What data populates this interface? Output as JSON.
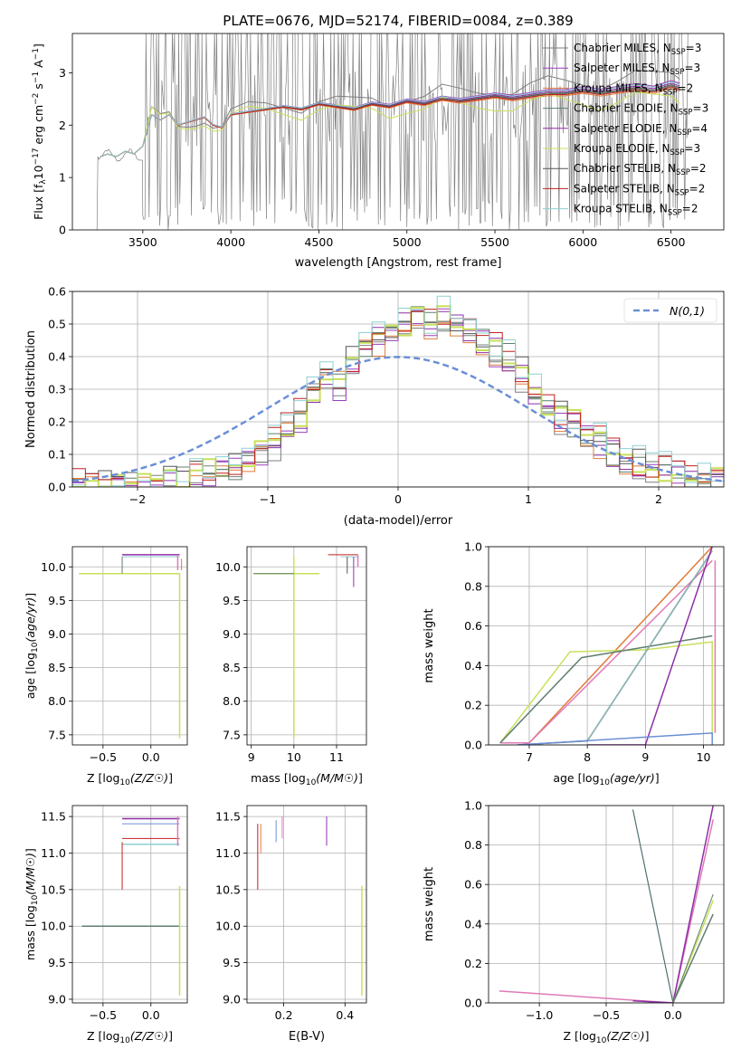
{
  "title": "PLATE=0676, MJD=52174, FIBERID=0084, z=0.389",
  "colors": {
    "Chabrier MILES": "#7f7f7f",
    "Salpeter MILES": "#9b3fbf",
    "Kroupa MILES": "#e07b39",
    "Chabrier ELODIE": "#5f7f6f",
    "Salpeter ELODIE": "#8e2fa8",
    "Kroupa ELODIE": "#c8e05a",
    "Chabrier STELIB": "#555555",
    "Salpeter STELIB": "#c0201f",
    "Kroupa STELIB": "#8fcfd0",
    "normal": "#6b8fd6",
    "pink": "#e07ab8",
    "blue": "#6b8fd6"
  },
  "chart_data": [
    {
      "id": "spectrum",
      "type": "line",
      "xlabel": "wavelength [Angstrom, rest frame]",
      "ylabel": "Flux [f_λ 10^-17 erg cm^-2 s^-1 A^-1]",
      "ylabel_parts": {
        "main": "Flux [f",
        "sub1": "λ",
        "mid": "10",
        "sup1": "−17",
        "rest": " erg cm",
        "sup2": "−2",
        "s": " s",
        "sup3": "−1",
        "a": " A",
        "sup4": "−1",
        "end": "]"
      },
      "xlim": [
        3100,
        6800
      ],
      "ylim": [
        0,
        3.75
      ],
      "xticks": [
        3500,
        4000,
        4500,
        5000,
        5500,
        6000,
        6500
      ],
      "yticks": [
        0,
        1,
        2,
        3
      ],
      "legend": [
        {
          "name": "Chabrier MILES",
          "nssp": "3"
        },
        {
          "name": "Salpeter MILES",
          "nssp": "3"
        },
        {
          "name": "Kroupa MILES",
          "nssp": "2"
        },
        {
          "name": "Chabrier ELODIE",
          "nssp": "3"
        },
        {
          "name": "Salpeter ELODIE",
          "nssp": "4"
        },
        {
          "name": "Kroupa ELODIE",
          "nssp": "3"
        },
        {
          "name": "Chabrier STELIB",
          "nssp": "2"
        },
        {
          "name": "Salpeter STELIB",
          "nssp": "2"
        },
        {
          "name": "Kroupa STELIB",
          "nssp": "2"
        }
      ],
      "nssp_prefix": "N",
      "nssp_sub": "SSP",
      "model_curve_x": [
        3260,
        3300,
        3350,
        3400,
        3450,
        3500,
        3550,
        3600,
        3650,
        3700,
        3750,
        3800,
        3850,
        3900,
        3950,
        4000,
        4100,
        4200,
        4300,
        4400,
        4500,
        4600,
        4700,
        4800,
        4900,
        5000,
        5100,
        5200,
        5300,
        5400,
        5500,
        5600,
        5700,
        5800,
        5900,
        6000,
        6100,
        6200,
        6300,
        6400,
        6500,
        6550
      ],
      "model_curve_y": [
        1.4,
        1.45,
        1.4,
        1.5,
        1.45,
        1.6,
        2.2,
        2.1,
        2.2,
        2.0,
        2.05,
        2.1,
        2.15,
        2.0,
        1.95,
        2.2,
        2.25,
        2.3,
        2.35,
        2.3,
        2.4,
        2.35,
        2.3,
        2.4,
        2.35,
        2.45,
        2.4,
        2.5,
        2.45,
        2.5,
        2.55,
        2.5,
        2.55,
        2.6,
        2.6,
        2.65,
        2.6,
        2.65,
        2.7,
        2.65,
        2.75,
        2.7
      ]
    },
    {
      "id": "residuals",
      "type": "line",
      "xlabel": "(data-model)/error",
      "ylabel": "Normed distribution",
      "xlim": [
        -2.5,
        2.5
      ],
      "ylim": [
        0,
        0.6
      ],
      "xticks": [
        -2,
        -1,
        0,
        1,
        2
      ],
      "yticks": [
        0.0,
        0.1,
        0.2,
        0.3,
        0.4,
        0.5,
        0.6
      ],
      "legend_label": "N(0,1)",
      "bin_edges_start": -2.5,
      "bin_width": 0.1,
      "hist_values": [
        0.0,
        0.0,
        0.0,
        0.0,
        0.0,
        0.0,
        0.01,
        0.015,
        0.02,
        0.03,
        0.04,
        0.05,
        0.06,
        0.08,
        0.11,
        0.14,
        0.18,
        0.22,
        0.3,
        0.35,
        0.32,
        0.38,
        0.42,
        0.45,
        0.48,
        0.5,
        0.52,
        0.5,
        0.53,
        0.5,
        0.48,
        0.45,
        0.42,
        0.4,
        0.35,
        0.3,
        0.26,
        0.22,
        0.2,
        0.17,
        0.14,
        0.11,
        0.09,
        0.07,
        0.06,
        0.05,
        0.04,
        0.03,
        0.02,
        0.02
      ]
    },
    {
      "id": "age-vs-z",
      "type": "line",
      "xlabel": "Z [log10(Z/Z☉)]",
      "ylabel": "age [log10(age/yr)]",
      "xlim": [
        -0.82,
        0.38
      ],
      "ylim": [
        7.35,
        10.3
      ],
      "xticks": [
        -0.5,
        0.0
      ],
      "yticks": [
        7.5,
        8.0,
        8.5,
        9.0,
        9.5,
        10.0
      ]
    },
    {
      "id": "age-vs-mass",
      "type": "line",
      "xlabel": "mass [log10(M/M☉)]",
      "xlim": [
        8.9,
        11.7
      ],
      "ylim": [
        7.35,
        10.3
      ],
      "xticks": [
        9,
        10,
        11
      ],
      "yticks": [
        7.5,
        8.0,
        8.5,
        9.0,
        9.5,
        10.0
      ]
    },
    {
      "id": "massweight-vs-age",
      "type": "line",
      "xlabel": "age [log10(age/yr)]",
      "ylabel": "mass weight",
      "xlim": [
        6.3,
        10.35
      ],
      "ylim": [
        0,
        1.0
      ],
      "xticks": [
        7,
        8,
        9,
        10
      ],
      "yticks": [
        0.0,
        0.2,
        0.4,
        0.6,
        0.8,
        1.0
      ]
    },
    {
      "id": "mass-vs-z",
      "type": "line",
      "xlabel": "Z [log10(Z/Z☉)]",
      "ylabel": "mass [log10(M/M☉)]",
      "xlim": [
        -0.82,
        0.38
      ],
      "ylim": [
        8.95,
        11.65
      ],
      "xticks": [
        -0.5,
        0.0
      ],
      "yticks": [
        9.0,
        9.5,
        10.0,
        10.5,
        11.0,
        11.5
      ]
    },
    {
      "id": "mass-vs-ebv",
      "type": "line",
      "xlabel": "E(B-V)",
      "xlim": [
        0.08,
        0.47
      ],
      "ylim": [
        8.95,
        11.65
      ],
      "xticks": [
        0.2,
        0.4
      ],
      "yticks": [
        9.0,
        9.5,
        10.0,
        10.5,
        11.0,
        11.5
      ]
    },
    {
      "id": "massweight-vs-z",
      "type": "line",
      "xlabel": "Z [log10(Z/Z☉)]",
      "ylabel": "mass weight",
      "xlim": [
        -1.38,
        0.38
      ],
      "ylim": [
        0,
        1.0
      ],
      "xticks": [
        -1.0,
        -0.5,
        0.0
      ],
      "yticks": [
        0.0,
        0.2,
        0.4,
        0.6,
        0.8,
        1.0
      ]
    }
  ]
}
